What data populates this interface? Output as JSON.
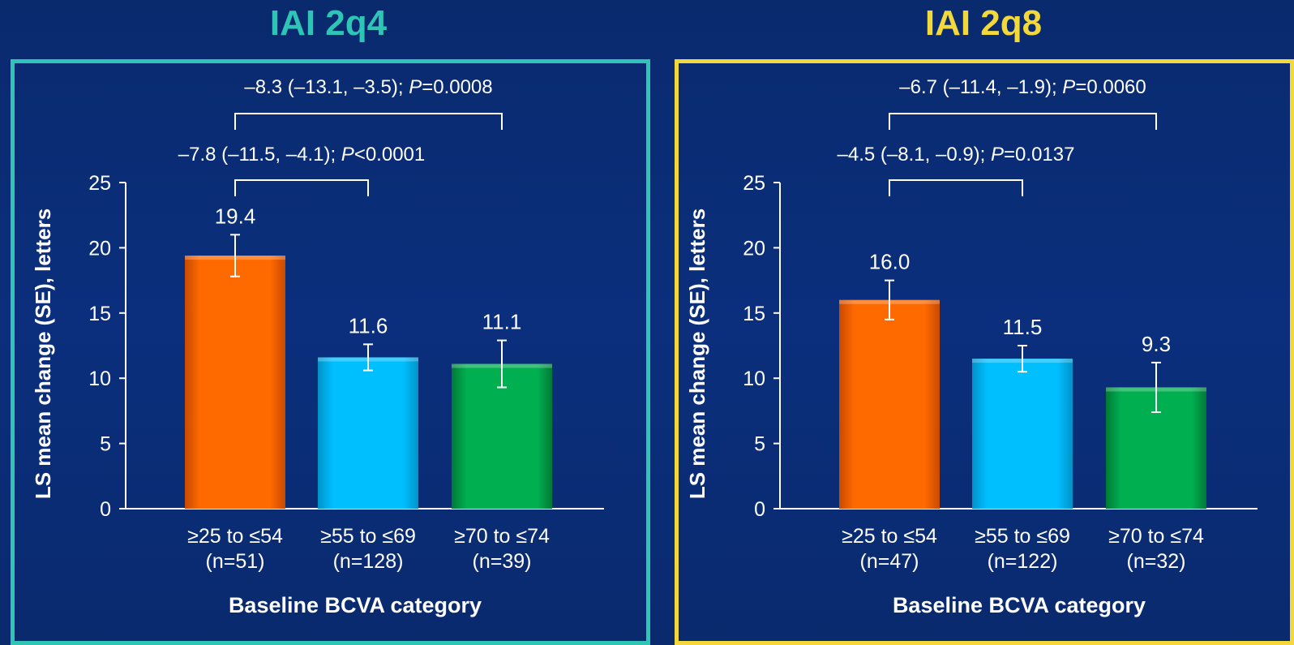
{
  "chart_data": [
    {
      "type": "bar",
      "title": "IAI 2q4",
      "title_color": "#2ec4b6",
      "ylabel": "LS mean change (SE), letters",
      "xlabel": "Baseline BCVA category",
      "ylim": [
        0,
        25
      ],
      "yticks": [
        "0",
        "5",
        "10",
        "15",
        "20",
        "25"
      ],
      "categories": [
        "≥25 to ≤54",
        "≥55 to ≤69",
        "≥70 to ≤74"
      ],
      "category_n": [
        "(n=51)",
        "(n=128)",
        "(n=39)"
      ],
      "values": [
        19.4,
        11.6,
        11.1
      ],
      "value_labels": [
        "19.4",
        "11.6",
        "11.1"
      ],
      "error_low": [
        17.8,
        10.6,
        9.3
      ],
      "error_high": [
        21.0,
        12.6,
        12.9
      ],
      "bar_colors": [
        "#ff6a00",
        "#00bfff",
        "#00b050"
      ],
      "comparisons": [
        {
          "from": 0,
          "to": 2,
          "estimate": "–8.3 (–13.1, –3.5); ",
          "p_label": "P",
          "p_value": "=0.0008"
        },
        {
          "from": 0,
          "to": 1,
          "estimate": "–7.8 (–11.5, –4.1); ",
          "p_label": "P",
          "p_value": "<0.0001"
        }
      ]
    },
    {
      "type": "bar",
      "title": "IAI 2q8",
      "title_color": "#f2d83a",
      "ylabel": "LS mean change (SE), letters",
      "xlabel": "Baseline BCVA category",
      "ylim": [
        0,
        25
      ],
      "yticks": [
        "0",
        "5",
        "10",
        "15",
        "20",
        "25"
      ],
      "categories": [
        "≥25 to ≤54",
        "≥55 to ≤69",
        "≥70 to ≤74"
      ],
      "category_n": [
        "(n=47)",
        "(n=122)",
        "(n=32)"
      ],
      "values": [
        16.0,
        11.5,
        9.3
      ],
      "value_labels": [
        "16.0",
        "11.5",
        "9.3"
      ],
      "error_low": [
        14.5,
        10.5,
        7.4
      ],
      "error_high": [
        17.5,
        12.5,
        11.2
      ],
      "bar_colors": [
        "#ff6a00",
        "#00bfff",
        "#00b050"
      ],
      "comparisons": [
        {
          "from": 0,
          "to": 2,
          "estimate": "–6.7 (–11.4, –1.9); ",
          "p_label": "P",
          "p_value": "=0.0060"
        },
        {
          "from": 0,
          "to": 1,
          "estimate": "–4.5 (–8.1, –0.9); ",
          "p_label": "P",
          "p_value": "=0.0137"
        }
      ]
    }
  ]
}
